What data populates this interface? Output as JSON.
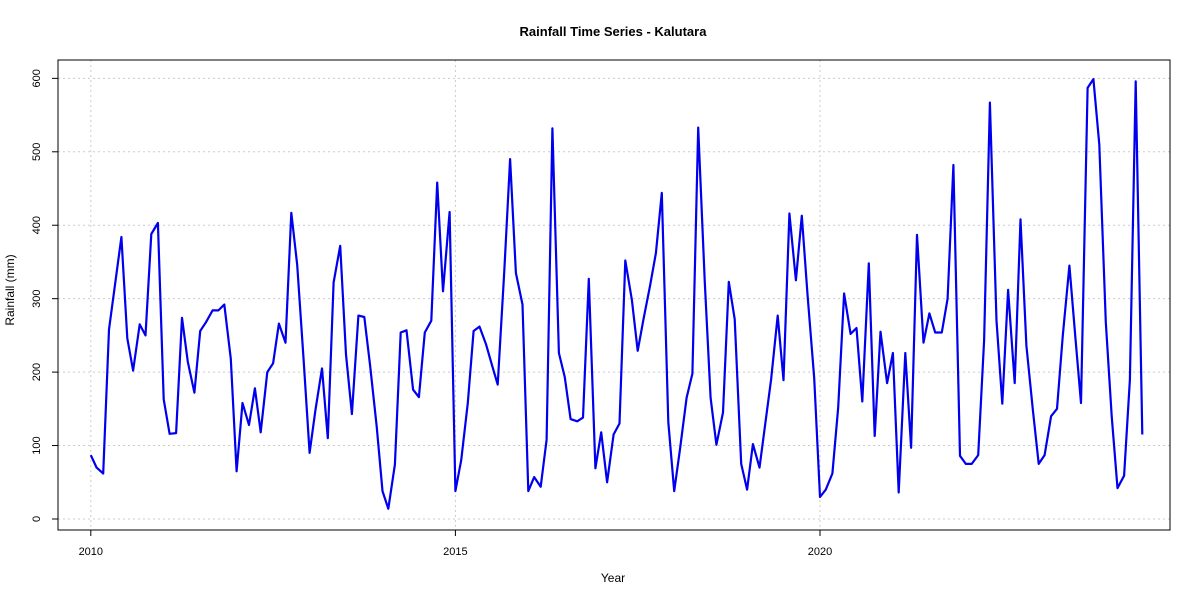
{
  "chart_data": {
    "type": "line",
    "title": "Rainfall Time Series - Kalutara",
    "xlabel": "Year",
    "ylabel": "Rainfall (mm)",
    "xlim": [
      2009.55,
      2024.8
    ],
    "ylim": [
      -15,
      625
    ],
    "xticks": [
      2010,
      2015,
      2020
    ],
    "xtick_labels": [
      "2010",
      "2015",
      "2020"
    ],
    "yticks": [
      0,
      100,
      200,
      300,
      400,
      500,
      600
    ],
    "ytick_labels": [
      "0",
      "100",
      "200",
      "300",
      "400",
      "500",
      "600"
    ],
    "grid": true,
    "colors": {
      "line": "#0000ee",
      "grid": "#cccccc",
      "box": "#000000"
    },
    "series": [
      {
        "values": [
          [
            2010.0,
            87
          ],
          [
            2010.08,
            70
          ],
          [
            2010.17,
            62
          ],
          [
            2010.25,
            258
          ],
          [
            2010.33,
            318
          ],
          [
            2010.42,
            384
          ],
          [
            2010.5,
            246
          ],
          [
            2010.58,
            202
          ],
          [
            2010.67,
            265
          ],
          [
            2010.75,
            250
          ],
          [
            2010.83,
            388
          ],
          [
            2010.92,
            403
          ],
          [
            2011.0,
            163
          ],
          [
            2011.08,
            116
          ],
          [
            2011.17,
            117
          ],
          [
            2011.25,
            274
          ],
          [
            2011.33,
            214
          ],
          [
            2011.42,
            172
          ],
          [
            2011.5,
            256
          ],
          [
            2011.58,
            268
          ],
          [
            2011.67,
            284
          ],
          [
            2011.75,
            284
          ],
          [
            2011.83,
            292
          ],
          [
            2011.92,
            218
          ],
          [
            2012.0,
            65
          ],
          [
            2012.08,
            158
          ],
          [
            2012.17,
            128
          ],
          [
            2012.25,
            178
          ],
          [
            2012.33,
            118
          ],
          [
            2012.42,
            200
          ],
          [
            2012.5,
            212
          ],
          [
            2012.58,
            266
          ],
          [
            2012.67,
            240
          ],
          [
            2012.75,
            417
          ],
          [
            2012.83,
            346
          ],
          [
            2012.92,
            215
          ],
          [
            2013.0,
            90
          ],
          [
            2013.08,
            148
          ],
          [
            2013.17,
            205
          ],
          [
            2013.25,
            110
          ],
          [
            2013.33,
            322
          ],
          [
            2013.42,
            372
          ],
          [
            2013.5,
            224
          ],
          [
            2013.58,
            143
          ],
          [
            2013.67,
            277
          ],
          [
            2013.75,
            275
          ],
          [
            2013.83,
            209
          ],
          [
            2013.92,
            126
          ],
          [
            2014.0,
            38
          ],
          [
            2014.08,
            14
          ],
          [
            2014.17,
            74
          ],
          [
            2014.25,
            254
          ],
          [
            2014.33,
            257
          ],
          [
            2014.42,
            176
          ],
          [
            2014.5,
            166
          ],
          [
            2014.58,
            254
          ],
          [
            2014.67,
            270
          ],
          [
            2014.75,
            458
          ],
          [
            2014.83,
            310
          ],
          [
            2014.92,
            418
          ],
          [
            2015.0,
            38
          ],
          [
            2015.08,
            80
          ],
          [
            2015.17,
            158
          ],
          [
            2015.25,
            256
          ],
          [
            2015.33,
            262
          ],
          [
            2015.42,
            238
          ],
          [
            2015.5,
            210
          ],
          [
            2015.58,
            183
          ],
          [
            2015.67,
            338
          ],
          [
            2015.75,
            490
          ],
          [
            2015.83,
            335
          ],
          [
            2015.92,
            292
          ],
          [
            2016.0,
            38
          ],
          [
            2016.08,
            57
          ],
          [
            2016.17,
            44
          ],
          [
            2016.25,
            108
          ],
          [
            2016.33,
            532
          ],
          [
            2016.42,
            226
          ],
          [
            2016.5,
            193
          ],
          [
            2016.58,
            136
          ],
          [
            2016.67,
            133
          ],
          [
            2016.75,
            138
          ],
          [
            2016.83,
            327
          ],
          [
            2016.92,
            69
          ],
          [
            2017.0,
            118
          ],
          [
            2017.08,
            50
          ],
          [
            2017.17,
            115
          ],
          [
            2017.25,
            130
          ],
          [
            2017.33,
            352
          ],
          [
            2017.42,
            298
          ],
          [
            2017.5,
            229
          ],
          [
            2017.58,
            272
          ],
          [
            2017.67,
            318
          ],
          [
            2017.75,
            362
          ],
          [
            2017.83,
            444
          ],
          [
            2017.92,
            132
          ],
          [
            2018.0,
            38
          ],
          [
            2018.08,
            95
          ],
          [
            2018.17,
            165
          ],
          [
            2018.25,
            198
          ],
          [
            2018.33,
            533
          ],
          [
            2018.42,
            322
          ],
          [
            2018.5,
            165
          ],
          [
            2018.58,
            101
          ],
          [
            2018.67,
            145
          ],
          [
            2018.75,
            323
          ],
          [
            2018.83,
            272
          ],
          [
            2018.92,
            75
          ],
          [
            2019.0,
            40
          ],
          [
            2019.08,
            102
          ],
          [
            2019.17,
            70
          ],
          [
            2019.25,
            130
          ],
          [
            2019.33,
            190
          ],
          [
            2019.42,
            277
          ],
          [
            2019.5,
            189
          ],
          [
            2019.58,
            416
          ],
          [
            2019.67,
            325
          ],
          [
            2019.75,
            413
          ],
          [
            2019.83,
            304
          ],
          [
            2019.92,
            192
          ],
          [
            2020.0,
            30
          ],
          [
            2020.08,
            40
          ],
          [
            2020.17,
            62
          ],
          [
            2020.25,
            152
          ],
          [
            2020.33,
            307
          ],
          [
            2020.42,
            252
          ],
          [
            2020.5,
            260
          ],
          [
            2020.58,
            160
          ],
          [
            2020.67,
            348
          ],
          [
            2020.75,
            113
          ],
          [
            2020.83,
            255
          ],
          [
            2020.92,
            185
          ],
          [
            2021.0,
            226
          ],
          [
            2021.08,
            36
          ],
          [
            2021.17,
            226
          ],
          [
            2021.25,
            97
          ],
          [
            2021.33,
            387
          ],
          [
            2021.42,
            240
          ],
          [
            2021.5,
            280
          ],
          [
            2021.58,
            254
          ],
          [
            2021.67,
            254
          ],
          [
            2021.75,
            300
          ],
          [
            2021.83,
            482
          ],
          [
            2021.92,
            86
          ],
          [
            2022.0,
            75
          ],
          [
            2022.08,
            75
          ],
          [
            2022.17,
            87
          ],
          [
            2022.25,
            243
          ],
          [
            2022.33,
            567
          ],
          [
            2022.42,
            270
          ],
          [
            2022.5,
            157
          ],
          [
            2022.58,
            312
          ],
          [
            2022.67,
            185
          ],
          [
            2022.75,
            408
          ],
          [
            2022.83,
            236
          ],
          [
            2022.92,
            148
          ],
          [
            2023.0,
            75
          ],
          [
            2023.08,
            87
          ],
          [
            2023.17,
            140
          ],
          [
            2023.25,
            150
          ],
          [
            2023.33,
            250
          ],
          [
            2023.42,
            345
          ],
          [
            2023.5,
            250
          ],
          [
            2023.58,
            158
          ],
          [
            2023.67,
            587
          ],
          [
            2023.75,
            599
          ],
          [
            2023.83,
            510
          ],
          [
            2023.92,
            268
          ],
          [
            2024.0,
            140
          ],
          [
            2024.08,
            42
          ],
          [
            2024.17,
            59
          ],
          [
            2024.25,
            190
          ],
          [
            2024.33,
            596
          ],
          [
            2024.42,
            115
          ]
        ]
      }
    ]
  }
}
